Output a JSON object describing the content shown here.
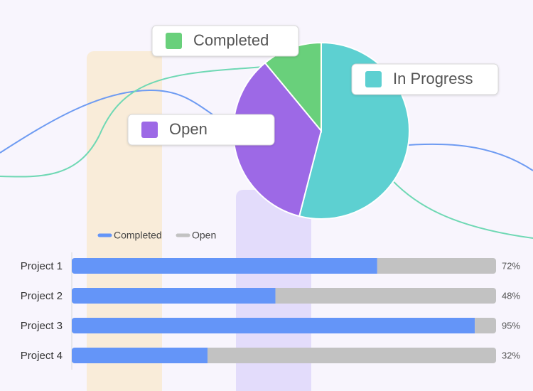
{
  "chart_data": [
    {
      "type": "pie",
      "categories": [
        "In Progress",
        "Open",
        "Completed"
      ],
      "values": [
        54,
        35,
        11
      ],
      "colors": [
        "#5dd0d1",
        "#9d69e6",
        "#69d07b"
      ]
    },
    {
      "type": "bar",
      "orientation": "horizontal",
      "stacked": true,
      "categories": [
        "Project 1",
        "Project 2",
        "Project 3",
        "Project 4"
      ],
      "series": [
        {
          "name": "Completed",
          "color": "#6495f8",
          "values": [
            72,
            48,
            95,
            32
          ],
          "value_labels": [
            "72%",
            "48%",
            "95%",
            "32%"
          ]
        },
        {
          "name": "Open",
          "color": "#c2c2c2",
          "values": [
            28,
            52,
            5,
            68
          ]
        }
      ],
      "legend": "top-left"
    }
  ]
}
